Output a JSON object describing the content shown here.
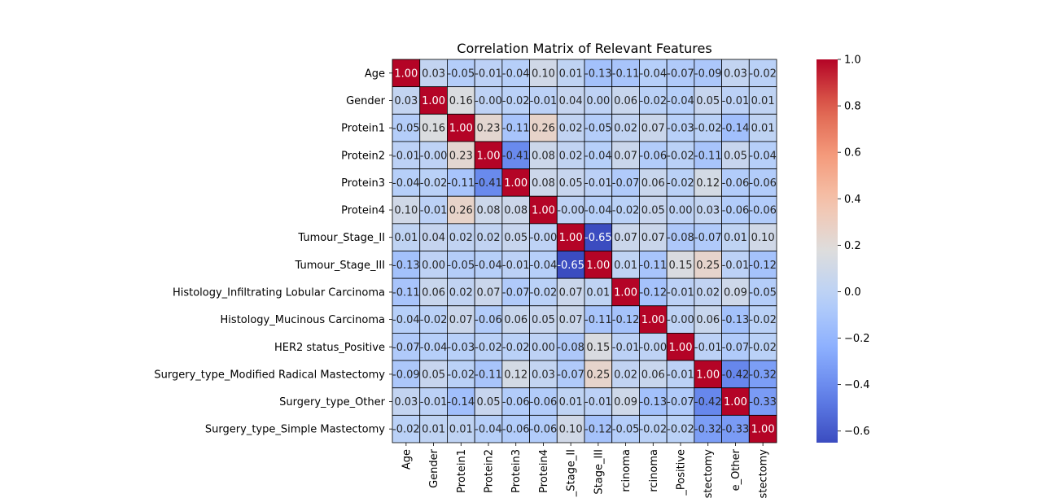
{
  "chart_data": {
    "type": "heatmap",
    "title": "Correlation Matrix of Relevant Features",
    "row_labels": [
      "Age",
      "Gender",
      "Protein1",
      "Protein2",
      "Protein3",
      "Protein4",
      "Tumour_Stage_II",
      "Tumour_Stage_III",
      "Histology_Infiltrating Lobular Carcinoma",
      "Histology_Mucinous Carcinoma",
      "HER2 status_Positive",
      "Surgery_type_Modified Radical Mastectomy",
      "Surgery_type_Other",
      "Surgery_type_Simple Mastectomy"
    ],
    "col_labels": [
      "Age",
      "Gender",
      "Protein1",
      "Protein2",
      "Protein3",
      "Protein4",
      "_Stage_II",
      "Stage_III",
      "rcinoma",
      "rcinoma",
      "_Positive",
      "astectomy",
      "e_Other",
      "stectomy"
    ],
    "values": [
      [
        1.0,
        0.03,
        -0.05,
        -0.01,
        -0.04,
        0.1,
        0.01,
        -0.13,
        -0.11,
        -0.04,
        -0.07,
        -0.09,
        0.03,
        -0.02
      ],
      [
        0.03,
        1.0,
        0.16,
        -0.0,
        -0.02,
        -0.01,
        0.04,
        0.0,
        0.06,
        -0.02,
        -0.04,
        0.05,
        -0.01,
        0.01
      ],
      [
        -0.05,
        0.16,
        1.0,
        0.23,
        -0.11,
        0.26,
        0.02,
        -0.05,
        0.02,
        0.07,
        -0.03,
        -0.02,
        -0.14,
        0.01
      ],
      [
        -0.01,
        -0.0,
        0.23,
        1.0,
        -0.41,
        0.08,
        0.02,
        -0.04,
        0.07,
        -0.06,
        -0.02,
        -0.11,
        0.05,
        -0.04
      ],
      [
        -0.04,
        -0.02,
        -0.11,
        -0.41,
        1.0,
        0.08,
        0.05,
        -0.01,
        -0.07,
        0.06,
        -0.02,
        0.12,
        -0.06,
        -0.06
      ],
      [
        0.1,
        -0.01,
        0.26,
        0.08,
        0.08,
        1.0,
        -0.0,
        -0.04,
        -0.02,
        0.05,
        0.0,
        0.03,
        -0.06,
        -0.06
      ],
      [
        0.01,
        0.04,
        0.02,
        0.02,
        0.05,
        -0.0,
        1.0,
        -0.65,
        0.07,
        0.07,
        -0.08,
        -0.07,
        0.01,
        0.1
      ],
      [
        -0.13,
        0.0,
        -0.05,
        -0.04,
        -0.01,
        -0.04,
        -0.65,
        1.0,
        0.01,
        -0.11,
        0.15,
        0.25,
        -0.01,
        -0.12
      ],
      [
        -0.11,
        0.06,
        0.02,
        0.07,
        -0.07,
        -0.02,
        0.07,
        0.01,
        1.0,
        -0.12,
        -0.01,
        0.02,
        0.09,
        -0.05
      ],
      [
        -0.04,
        -0.02,
        0.07,
        -0.06,
        0.06,
        0.05,
        0.07,
        -0.11,
        -0.12,
        1.0,
        -0.0,
        0.06,
        -0.13,
        -0.02
      ],
      [
        -0.07,
        -0.04,
        -0.03,
        -0.02,
        -0.02,
        0.0,
        -0.08,
        0.15,
        -0.01,
        -0.0,
        1.0,
        -0.01,
        -0.07,
        -0.02
      ],
      [
        -0.09,
        0.05,
        -0.02,
        -0.11,
        0.12,
        0.03,
        -0.07,
        0.25,
        0.02,
        0.06,
        -0.01,
        1.0,
        -0.42,
        -0.32
      ],
      [
        0.03,
        -0.01,
        -0.14,
        0.05,
        -0.06,
        -0.06,
        0.01,
        -0.01,
        0.09,
        -0.13,
        -0.07,
        -0.42,
        1.0,
        -0.33
      ],
      [
        -0.02,
        0.01,
        0.01,
        -0.04,
        -0.06,
        -0.06,
        0.1,
        -0.12,
        -0.05,
        -0.02,
        -0.02,
        -0.32,
        -0.33,
        1.0
      ]
    ],
    "colormap": "coolwarm",
    "vmin": -0.65,
    "vmax": 1.0,
    "annotate_format": "0.00",
    "colorbar_ticks": [
      "1.0",
      "0.8",
      "0.6",
      "0.4",
      "0.2",
      "0.0",
      "−0.2",
      "−0.4",
      "−0.6"
    ],
    "colorbar_tick_values": [
      1.0,
      0.8,
      0.6,
      0.4,
      0.2,
      0.0,
      -0.2,
      -0.4,
      -0.6
    ]
  }
}
